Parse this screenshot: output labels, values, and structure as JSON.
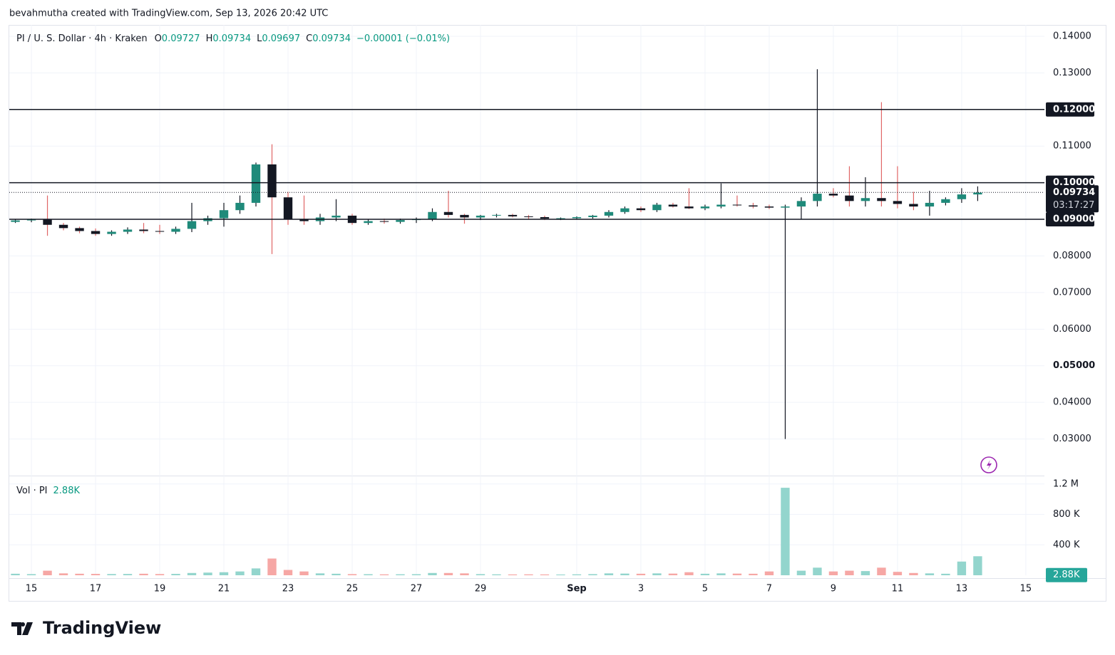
{
  "header": {
    "credit": "bevahmutha created with TradingView.com, Sep 13, 2026 20:42 UTC"
  },
  "footer": {
    "logo": "TradingView"
  },
  "chart_data": {
    "type": "candlestick",
    "title": "PI / U. S. Dollar · 4h · Kraken",
    "ohlc_legend": [
      {
        "label": "O",
        "value": 0.09727
      },
      {
        "label": "H",
        "value": 0.09734
      },
      {
        "label": "L",
        "value": 0.09697
      },
      {
        "label": "C",
        "value": 0.09734
      }
    ],
    "change": "−0.00001 (−0.01%)",
    "xlim": [
      -0.69,
      31.58
    ],
    "xticks": [
      {
        "value": 0,
        "label": "15"
      },
      {
        "value": 2,
        "label": "17"
      },
      {
        "value": 4,
        "label": "19"
      },
      {
        "value": 6,
        "label": "21"
      },
      {
        "value": 8,
        "label": "23"
      },
      {
        "value": 10,
        "label": "25"
      },
      {
        "value": 12,
        "label": "27"
      },
      {
        "value": 14,
        "label": "29"
      },
      {
        "value": 17,
        "label": "Sep"
      },
      {
        "value": 19,
        "label": "3"
      },
      {
        "value": 21,
        "label": "5"
      },
      {
        "value": 23,
        "label": "7"
      },
      {
        "value": 25,
        "label": "9"
      },
      {
        "value": 27,
        "label": "11"
      },
      {
        "value": 29,
        "label": "13"
      },
      {
        "value": 31,
        "label": "15"
      }
    ],
    "ylim": [
      0.02,
      0.1431
    ],
    "yticks": [
      {
        "value": 0.14,
        "label": "0.14000"
      },
      {
        "value": 0.13,
        "label": "0.13000"
      },
      {
        "value": 0.11,
        "label": "0.11000"
      },
      {
        "value": 0.08,
        "label": "0.08000"
      },
      {
        "value": 0.07,
        "label": "0.07000"
      },
      {
        "value": 0.06,
        "label": "0.06000"
      },
      {
        "value": 0.05,
        "label": "0.05000"
      },
      {
        "value": 0.04,
        "label": "0.04000"
      },
      {
        "value": 0.03,
        "label": "0.03000"
      }
    ],
    "grid": true,
    "up_color": "#1f8a7a",
    "down_color": "#131722",
    "up_wick": "#131722",
    "down_wick": "#e06666",
    "volume_up_color": "#93d5cd",
    "volume_down_color": "#f6a7a5",
    "price_lines": [
      {
        "value": 0.12,
        "label": "0.12000"
      },
      {
        "value": 0.1,
        "label": "0.10000"
      },
      {
        "value": 0.09,
        "label": "0.09000"
      }
    ],
    "last_price": {
      "value": 0.09734,
      "label": "0.09734",
      "countdown": "03:17:27"
    },
    "volume_title": "Vol · PI",
    "volume_last": {
      "value": 2880,
      "label": "2.88K"
    },
    "vlim": [
      0,
      1310000
    ],
    "vticks": [
      {
        "value": 1200000,
        "label": "1.2 M"
      },
      {
        "value": 800000,
        "label": "800 K"
      },
      {
        "value": 400000,
        "label": "400 K"
      }
    ],
    "x": [
      -0.5,
      0,
      0.5,
      1,
      1.5,
      2,
      2.5,
      3,
      3.5,
      4,
      4.5,
      5,
      5.5,
      6,
      6.5,
      7,
      7.5,
      8,
      8.5,
      9,
      9.5,
      10,
      10.5,
      11,
      11.5,
      12,
      12.5,
      13,
      13.5,
      14,
      14.5,
      15,
      15.5,
      16,
      16.5,
      17,
      17.5,
      18,
      18.5,
      19,
      19.5,
      20,
      20.5,
      21,
      21.5,
      22,
      22.5,
      23,
      23.5,
      24,
      24.5,
      25,
      25.5,
      26,
      26.5,
      27,
      27.5,
      28,
      28.5,
      29,
      29.5
    ],
    "open": [
      0.0893,
      0.0897,
      0.0899,
      0.0885,
      0.0876,
      0.0868,
      0.086,
      0.0866,
      0.0872,
      0.0868,
      0.0866,
      0.0874,
      0.0895,
      0.0903,
      0.0925,
      0.0945,
      0.105,
      0.096,
      0.09,
      0.0895,
      0.0905,
      0.091,
      0.089,
      0.0895,
      0.0893,
      0.0898,
      0.09,
      0.092,
      0.0912,
      0.0905,
      0.091,
      0.0912,
      0.0908,
      0.0906,
      0.0902,
      0.0903,
      0.0906,
      0.091,
      0.092,
      0.093,
      0.0925,
      0.094,
      0.0935,
      0.093,
      0.0935,
      0.094,
      0.0938,
      0.0935,
      0.0932,
      0.0935,
      0.095,
      0.097,
      0.0965,
      0.095,
      0.0958,
      0.095,
      0.0942,
      0.0935,
      0.0945,
      0.0955,
      0.0968
    ],
    "high": [
      0.09,
      0.0902,
      0.0965,
      0.089,
      0.088,
      0.0875,
      0.087,
      0.0878,
      0.089,
      0.0885,
      0.088,
      0.0945,
      0.091,
      0.0945,
      0.0965,
      0.1055,
      0.1105,
      0.0975,
      0.0965,
      0.0915,
      0.0955,
      0.0915,
      0.09,
      0.0902,
      0.0902,
      0.0905,
      0.093,
      0.0978,
      0.0915,
      0.0912,
      0.0915,
      0.0915,
      0.0912,
      0.091,
      0.0905,
      0.0908,
      0.0912,
      0.0925,
      0.0935,
      0.0935,
      0.0945,
      0.0945,
      0.0985,
      0.094,
      0.0998,
      0.0965,
      0.0945,
      0.094,
      0.094,
      0.096,
      0.131,
      0.0985,
      0.1045,
      0.1015,
      0.122,
      0.1045,
      0.0975,
      0.0978,
      0.096,
      0.0985,
      0.099
    ],
    "low": [
      0.089,
      0.0892,
      0.0855,
      0.087,
      0.0862,
      0.0855,
      0.0855,
      0.086,
      0.0862,
      0.086,
      0.086,
      0.0865,
      0.0885,
      0.088,
      0.0915,
      0.0935,
      0.0805,
      0.0885,
      0.0885,
      0.0885,
      0.0895,
      0.0885,
      0.0885,
      0.0888,
      0.0888,
      0.089,
      0.0895,
      0.0905,
      0.0888,
      0.0898,
      0.0905,
      0.0905,
      0.09,
      0.0898,
      0.0898,
      0.09,
      0.0902,
      0.0905,
      0.0915,
      0.092,
      0.092,
      0.0932,
      0.0928,
      0.0925,
      0.093,
      0.0935,
      0.093,
      0.0928,
      0.03,
      0.09,
      0.0935,
      0.096,
      0.0935,
      0.0935,
      0.0935,
      0.093,
      0.0925,
      0.091,
      0.0938,
      0.0945,
      0.095
    ],
    "close": [
      0.0897,
      0.0899,
      0.0885,
      0.0876,
      0.0868,
      0.086,
      0.0866,
      0.0872,
      0.0868,
      0.0866,
      0.0874,
      0.0895,
      0.0903,
      0.0925,
      0.0945,
      0.105,
      0.096,
      0.09,
      0.0895,
      0.0905,
      0.091,
      0.089,
      0.0895,
      0.0893,
      0.0898,
      0.09,
      0.092,
      0.0912,
      0.0905,
      0.091,
      0.0912,
      0.0908,
      0.0906,
      0.0902,
      0.0903,
      0.0906,
      0.091,
      0.092,
      0.093,
      0.0925,
      0.094,
      0.0935,
      0.093,
      0.0935,
      0.094,
      0.0938,
      0.0935,
      0.0932,
      0.0935,
      0.095,
      0.097,
      0.0965,
      0.095,
      0.0958,
      0.095,
      0.0942,
      0.0935,
      0.0945,
      0.0955,
      0.0968,
      0.0973
    ],
    "volume": [
      20000,
      15000,
      60000,
      25000,
      20000,
      18000,
      16000,
      17000,
      20000,
      16000,
      18000,
      30000,
      35000,
      40000,
      50000,
      90000,
      220000,
      70000,
      50000,
      25000,
      20000,
      15000,
      14000,
      12000,
      13000,
      14000,
      30000,
      30000,
      25000,
      15000,
      12000,
      11000,
      12000,
      11000,
      10000,
      12000,
      15000,
      25000,
      22000,
      20000,
      25000,
      22000,
      40000,
      20000,
      25000,
      22000,
      20000,
      50000,
      1150000,
      60000,
      100000,
      50000,
      60000,
      55000,
      100000,
      45000,
      30000,
      25000,
      20000,
      180000,
      250000
    ]
  }
}
